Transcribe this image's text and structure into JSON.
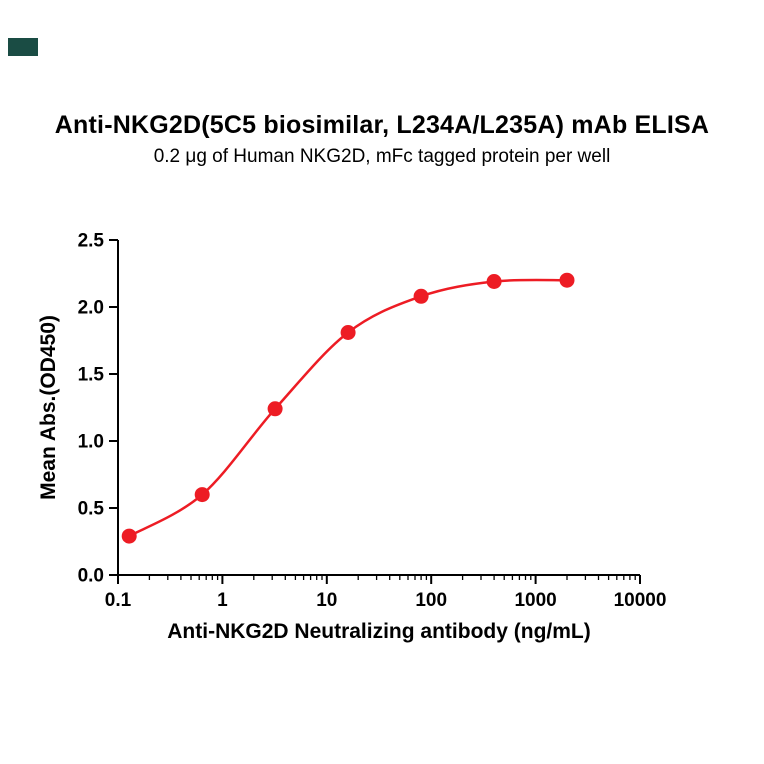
{
  "page": {
    "background": "#ffffff"
  },
  "logo": {
    "color": "#1a4c44"
  },
  "chart_data": {
    "type": "line",
    "title": "Anti-NKG2D(5C5 biosimilar, L234A/L235A) mAb ELISA",
    "subtitle": "0.2 μg of Human NKG2D, mFc tagged protein per well",
    "xlabel": "Anti-NKG2D Neutralizing antibody (ng/mL)",
    "ylabel": "Mean Abs.(OD450)",
    "x_scale": "log10",
    "xlim": [
      0.1,
      10000
    ],
    "ylim": [
      0,
      2.5
    ],
    "x_ticks": [
      0.1,
      1,
      10,
      100,
      1000,
      10000
    ],
    "x_tick_labels": [
      "0.1",
      "1",
      "10",
      "100",
      "1000",
      "10000"
    ],
    "y_ticks": [
      0,
      0.5,
      1,
      1.5,
      2,
      2.5
    ],
    "y_tick_labels": [
      "0.0",
      "0.5",
      "1.0",
      "1.5",
      "2.0",
      "2.5"
    ],
    "grid": false,
    "legend": "none",
    "axis_color": "#000000",
    "series": [
      {
        "name": "Anti-NKG2D(5C5 biosimilar, L234A/L235A) mAb",
        "color": "#ed1c24",
        "marker": "circle",
        "x": [
          0.128,
          0.64,
          3.2,
          16,
          80,
          400,
          2000
        ],
        "y": [
          0.29,
          0.6,
          1.24,
          1.81,
          2.08,
          2.19,
          2.2
        ]
      }
    ]
  }
}
